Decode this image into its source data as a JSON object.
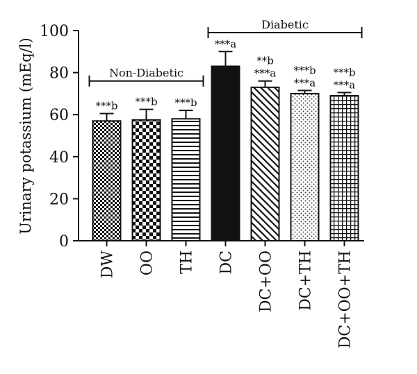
{
  "chart_data": {
    "type": "bar",
    "title": "",
    "xlabel": "",
    "ylabel": "Urinary potassium (mEq/l)",
    "ylim": [
      0,
      100
    ],
    "yticks": [
      0,
      20,
      40,
      60,
      80,
      100
    ],
    "categories": [
      "DW",
      "OO",
      "TH",
      "DC",
      "DC+OO",
      "DC+TH",
      "DC+OO+TH"
    ],
    "values": [
      57,
      57.5,
      58,
      83,
      73,
      70,
      69
    ],
    "errors": [
      3.5,
      5,
      4,
      7,
      3,
      1.5,
      1.5
    ],
    "annotations": [
      [
        "***b"
      ],
      [
        "***b"
      ],
      [
        "***b"
      ],
      [
        "***a"
      ],
      [
        "**b",
        "***a"
      ],
      [
        "***b",
        "***a"
      ],
      [
        "***b",
        "***a"
      ]
    ],
    "patterns": [
      "checker-fine",
      "checker-large",
      "horizontal-lines",
      "solid-black",
      "diagonal-lines",
      "dots",
      "grid"
    ],
    "groups": [
      {
        "label": "Non-Diabetic",
        "from": 0,
        "to": 2,
        "y": 76
      },
      {
        "label": "Diabetic",
        "from": 3,
        "to": 6,
        "y": 99
      }
    ],
    "grid": false,
    "legend": "none"
  }
}
